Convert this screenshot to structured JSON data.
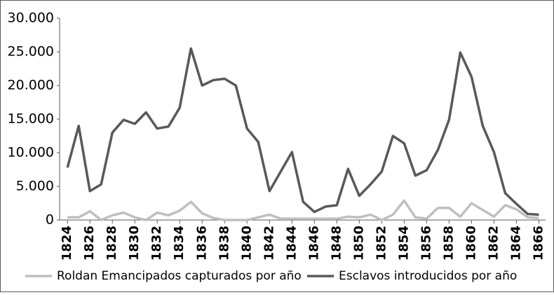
{
  "chart_data": {
    "type": "line",
    "x": [
      1824,
      1825,
      1826,
      1827,
      1828,
      1829,
      1830,
      1831,
      1832,
      1833,
      1834,
      1835,
      1836,
      1837,
      1838,
      1839,
      1840,
      1841,
      1842,
      1843,
      1844,
      1845,
      1846,
      1847,
      1848,
      1849,
      1850,
      1851,
      1852,
      1853,
      1854,
      1855,
      1856,
      1857,
      1858,
      1859,
      1860,
      1861,
      1862,
      1863,
      1864,
      1865,
      1866
    ],
    "xlim": [
      1823.3,
      1866.6
    ],
    "xticks": [
      1824,
      1826,
      1828,
      1830,
      1832,
      1834,
      1836,
      1838,
      1840,
      1842,
      1844,
      1846,
      1848,
      1850,
      1852,
      1854,
      1856,
      1858,
      1860,
      1862,
      1864,
      1866
    ],
    "ylim": [
      0,
      30000
    ],
    "yticks": [
      {
        "value": 0,
        "label": "0"
      },
      {
        "value": 5000,
        "label": "5.000"
      },
      {
        "value": 10000,
        "label": "10.000"
      },
      {
        "value": 15000,
        "label": "15.000"
      },
      {
        "value": 20000,
        "label": "20.000"
      },
      {
        "value": 25000,
        "label": "25.000"
      },
      {
        "value": 30000,
        "label": "30.000"
      }
    ],
    "grid": false,
    "legend": "bottom",
    "series": [
      {
        "name": "Roldan Emancipados capturados por año",
        "color": "#bfbfbf",
        "values": [
          400,
          400,
          1300,
          0,
          700,
          1100,
          400,
          0,
          1100,
          700,
          1400,
          2700,
          1000,
          300,
          0,
          0,
          0,
          400,
          800,
          200,
          200,
          200,
          200,
          200,
          200,
          500,
          400,
          800,
          0,
          800,
          2900,
          400,
          200,
          1800,
          1800,
          500,
          2500,
          1500,
          500,
          2200,
          1600,
          400,
          300
        ]
      },
      {
        "name": "Esclavos introducidos por año",
        "color": "#595959",
        "values": [
          7800,
          14000,
          4300,
          5300,
          13000,
          14900,
          14300,
          16000,
          13600,
          13900,
          16700,
          25500,
          20000,
          20800,
          21000,
          20000,
          13600,
          11600,
          4300,
          7200,
          10100,
          2700,
          1200,
          2000,
          2200,
          7600,
          3600,
          5300,
          7200,
          12500,
          11400,
          6600,
          7400,
          10400,
          14900,
          24900,
          21300,
          14000,
          10100,
          4000,
          2400,
          900,
          800
        ]
      }
    ]
  }
}
